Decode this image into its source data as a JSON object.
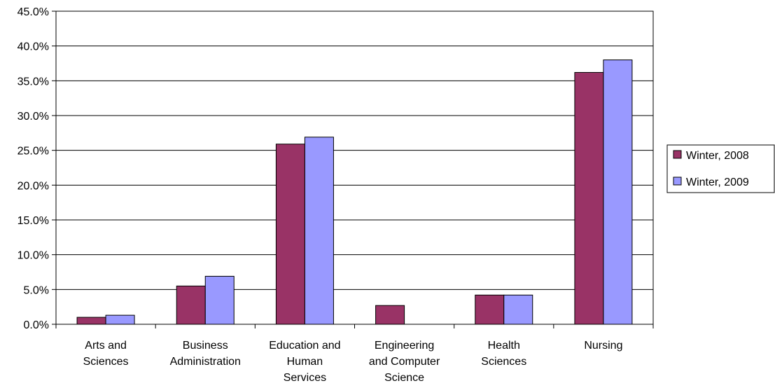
{
  "chart_data": {
    "type": "bar",
    "categories": [
      [
        "Arts and",
        "Sciences"
      ],
      [
        "Business",
        "Administration"
      ],
      [
        "Education and",
        "Human",
        "Services"
      ],
      [
        "Engineering",
        "and Computer",
        "Science"
      ],
      [
        "Health",
        "Sciences"
      ],
      [
        "Nursing"
      ]
    ],
    "series": [
      {
        "name": "Winter, 2008",
        "color": "#993366",
        "values": [
          1.0,
          5.5,
          25.9,
          2.7,
          4.2,
          36.2
        ]
      },
      {
        "name": "Winter, 2009",
        "color": "#9999ff",
        "values": [
          1.3,
          6.9,
          26.9,
          0.0,
          4.2,
          38.0
        ]
      }
    ],
    "y_ticks": [
      "0.0%",
      "5.0%",
      "10.0%",
      "15.0%",
      "20.0%",
      "25.0%",
      "30.0%",
      "35.0%",
      "40.0%",
      "45.0%"
    ],
    "ylim": [
      0,
      45
    ],
    "grid": true,
    "legend_position": "right"
  }
}
